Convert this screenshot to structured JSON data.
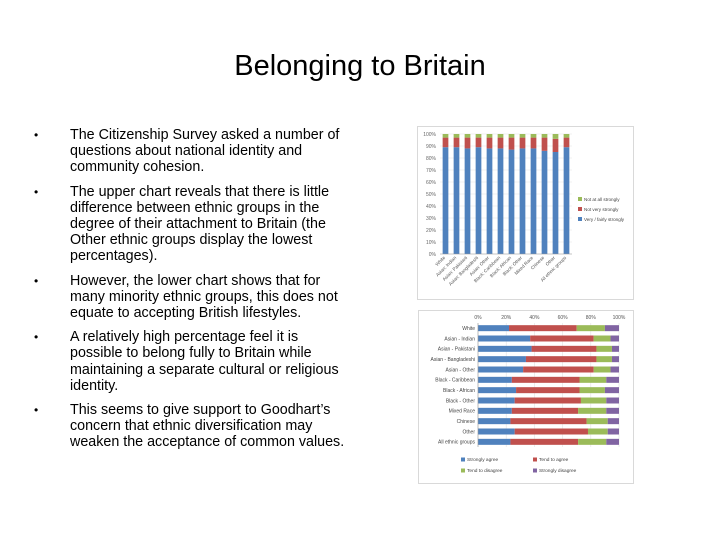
{
  "slide": {
    "title": "Belonging to Britain",
    "bullets": [
      "The Citizenship Survey asked a number of questions about national identity and community cohesion.",
      "The upper chart reveals that there is little difference between ethnic groups in the degree of their attachment to Britain (the Other ethnic groups display the lowest percentages).",
      "However, the lower chart shows that for many minority ethnic groups, this does not equate to accepting British lifestyles.",
      "A relatively high percentage feel it is possible to belong fully to Britain while maintaining a separate cultural or religious identity.",
      "This seems to give support to Goodhart’s concern that ethnic diversification may weaken the acceptance of common values."
    ],
    "bullet_glyph": "•"
  },
  "chart_data": [
    {
      "type": "bar",
      "stacked": true,
      "orientation": "vertical",
      "categories": [
        "White",
        "Asian: Indian",
        "Asian: Pakistani",
        "Asian: Bangladeshi",
        "Asian: Other",
        "Black: Caribbean",
        "Black: African",
        "Black: Other",
        "Mixed Race",
        "Chinese",
        "Other",
        "All ethnic groups"
      ],
      "yticks": [
        "0%",
        "10%",
        "20%",
        "30%",
        "40%",
        "50%",
        "60%",
        "70%",
        "80%",
        "90%",
        "100%"
      ],
      "ylim": [
        0,
        100
      ],
      "series": [
        {
          "name": "Very / fairly strongly",
          "color": "#4f81bd",
          "values": [
            89,
            89,
            88,
            89,
            88,
            88,
            87,
            88,
            88,
            86,
            85,
            89
          ]
        },
        {
          "name": "Not very strongly",
          "color": "#c0504d",
          "values": [
            8,
            8,
            9,
            8,
            9,
            9,
            10,
            9,
            9,
            11,
            11,
            8
          ]
        },
        {
          "name": "Not at all strongly",
          "color": "#9bbb59",
          "values": [
            3,
            3,
            3,
            3,
            3,
            3,
            3,
            3,
            3,
            3,
            4,
            3
          ]
        }
      ],
      "legend_position": "right"
    },
    {
      "type": "bar",
      "stacked": true,
      "orientation": "horizontal",
      "categories": [
        "White",
        "Asian - Indian",
        "Asian - Pakistani",
        "Asian - Bangladeshi",
        "Asian - Other",
        "Black - Caribbean",
        "Black - African",
        "Black - Other",
        "Mixed Race",
        "Chinese",
        "Other",
        "All ethnic groups"
      ],
      "xticks": [
        "0%",
        "20%",
        "40%",
        "60%",
        "80%",
        "100%"
      ],
      "xlim": [
        0,
        100
      ],
      "series": [
        {
          "name": "Strongly agree",
          "color": "#4f81bd",
          "values": [
            22,
            37,
            38,
            34,
            32,
            24,
            27,
            26,
            24,
            23,
            26,
            23
          ]
        },
        {
          "name": "Tend to agree",
          "color": "#c0504d",
          "values": [
            48,
            45,
            46,
            50,
            50,
            48,
            45,
            47,
            47,
            54,
            52,
            48
          ]
        },
        {
          "name": "Tend to disagree",
          "color": "#9bbb59",
          "values": [
            20,
            12,
            11,
            11,
            12,
            19,
            18,
            18,
            20,
            15,
            14,
            20
          ]
        },
        {
          "name": "Strongly disagree",
          "color": "#8064a2",
          "values": [
            10,
            6,
            5,
            5,
            6,
            9,
            10,
            9,
            9,
            8,
            8,
            9
          ]
        }
      ],
      "legend_position": "bottom"
    }
  ]
}
